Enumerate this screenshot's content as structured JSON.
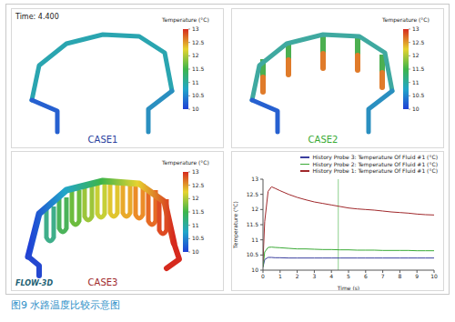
{
  "time_label": "Time: 4.400",
  "colorbar": {
    "title": "Temperature (°C)",
    "range": [
      10,
      13
    ],
    "ticks": [
      10,
      10.5,
      11,
      11.5,
      12,
      12.5,
      13
    ]
  },
  "panels": [
    {
      "label": "CASE1",
      "color": "#2b3f9e"
    },
    {
      "label": "CASE2",
      "color": "#3aaa35"
    },
    {
      "label": "CASE3",
      "color": "#a0282b",
      "logo": "FLOW-3D"
    }
  ],
  "caption": "图9 水路温度比较示意图",
  "chart_data": {
    "type": "line",
    "xlabel": "Time (s)",
    "ylabel": "Temperature (°C)",
    "x": [
      0,
      0.1,
      0.3,
      0.5,
      0.7,
      1,
      1.5,
      2,
      2.5,
      3,
      3.5,
      4,
      4.5,
      5,
      5.5,
      6,
      6.5,
      7,
      7.5,
      8,
      8.5,
      9,
      9.5,
      10
    ],
    "xlim": [
      0,
      10
    ],
    "xticks": [
      0,
      1,
      2,
      3,
      4,
      5,
      6,
      7,
      8,
      9,
      10
    ],
    "ylim": [
      10,
      13
    ],
    "yticks": [
      10,
      10.5,
      11,
      11.5,
      12,
      12.5,
      13
    ],
    "grid": false,
    "legend": "top",
    "time_line": {
      "x": 4.4,
      "color": "#8fd18f"
    },
    "series": [
      {
        "name": "History Probe 3: Temperature Of Fluid #1 (°C)",
        "color": "#3b3f9e",
        "values": [
          10.1,
          10.35,
          10.42,
          10.42,
          10.41,
          10.41,
          10.4,
          10.4,
          10.4,
          10.4,
          10.4,
          10.4,
          10.4,
          10.4,
          10.4,
          10.4,
          10.4,
          10.4,
          10.4,
          10.4,
          10.4,
          10.4,
          10.4,
          10.4
        ]
      },
      {
        "name": "History Probe 2: Temperature Of Fluid #1 (°C)",
        "color": "#3aaa35",
        "values": [
          10.1,
          10.6,
          10.75,
          10.76,
          10.75,
          10.74,
          10.72,
          10.7,
          10.7,
          10.69,
          10.68,
          10.68,
          10.67,
          10.67,
          10.66,
          10.66,
          10.66,
          10.65,
          10.65,
          10.65,
          10.65,
          10.64,
          10.64,
          10.64
        ]
      },
      {
        "name": "History Probe 1: Temperature Of Fluid #1 (°C)",
        "color": "#a0282b",
        "values": [
          10.3,
          11.6,
          12.6,
          12.75,
          12.7,
          12.62,
          12.5,
          12.4,
          12.32,
          12.25,
          12.2,
          12.15,
          12.1,
          12.05,
          12.02,
          12,
          11.98,
          11.95,
          11.92,
          11.9,
          11.88,
          11.85,
          11.83,
          11.82
        ]
      }
    ]
  }
}
